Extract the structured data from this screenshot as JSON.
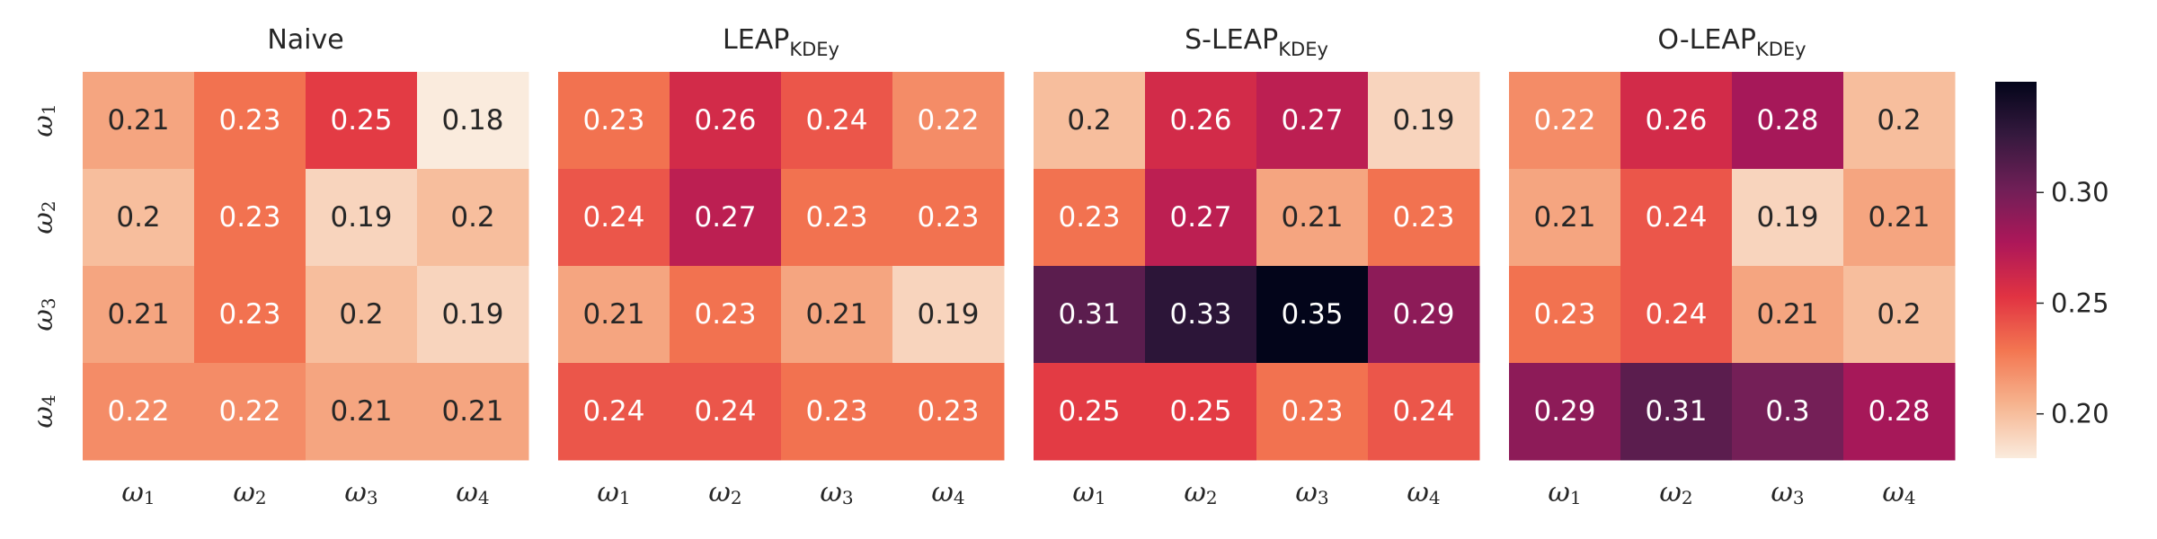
{
  "chart_data": [
    {
      "type": "heatmap",
      "title": "Naive",
      "title_sub": "",
      "x_labels": [
        "ω1",
        "ω2",
        "ω3",
        "ω4"
      ],
      "y_labels": [
        "ω1",
        "ω2",
        "ω3",
        "ω4"
      ],
      "values": [
        [
          0.21,
          0.23,
          0.25,
          0.18
        ],
        [
          0.2,
          0.23,
          0.19,
          0.2
        ],
        [
          0.21,
          0.23,
          0.2,
          0.19
        ],
        [
          0.22,
          0.22,
          0.21,
          0.21
        ]
      ]
    },
    {
      "type": "heatmap",
      "title": "LEAP",
      "title_sub": "KDEy",
      "x_labels": [
        "ω1",
        "ω2",
        "ω3",
        "ω4"
      ],
      "y_labels": [
        "ω1",
        "ω2",
        "ω3",
        "ω4"
      ],
      "values": [
        [
          0.23,
          0.26,
          0.24,
          0.22
        ],
        [
          0.24,
          0.27,
          0.23,
          0.23
        ],
        [
          0.21,
          0.23,
          0.21,
          0.19
        ],
        [
          0.24,
          0.24,
          0.23,
          0.23
        ]
      ]
    },
    {
      "type": "heatmap",
      "title": "S-LEAP",
      "title_sub": "KDEy",
      "x_labels": [
        "ω1",
        "ω2",
        "ω3",
        "ω4"
      ],
      "y_labels": [
        "ω1",
        "ω2",
        "ω3",
        "ω4"
      ],
      "values": [
        [
          0.2,
          0.26,
          0.27,
          0.19
        ],
        [
          0.23,
          0.27,
          0.21,
          0.23
        ],
        [
          0.31,
          0.33,
          0.35,
          0.29
        ],
        [
          0.25,
          0.25,
          0.23,
          0.24
        ]
      ]
    },
    {
      "type": "heatmap",
      "title": "O-LEAP",
      "title_sub": "KDEy",
      "x_labels": [
        "ω1",
        "ω2",
        "ω3",
        "ω4"
      ],
      "y_labels": [
        "ω1",
        "ω2",
        "ω3",
        "ω4"
      ],
      "values": [
        [
          0.22,
          0.26,
          0.28,
          0.2
        ],
        [
          0.21,
          0.24,
          0.19,
          0.21
        ],
        [
          0.23,
          0.24,
          0.21,
          0.2
        ],
        [
          0.29,
          0.31,
          0.3,
          0.28
        ]
      ]
    }
  ],
  "colorbar": {
    "ticks": [
      "0.20",
      "0.25",
      "0.30"
    ],
    "vmin": 0.18,
    "vmax": 0.35,
    "colormap": "rocket_r",
    "stops": [
      "#faebdd",
      "#f6b48f",
      "#f37651",
      "#e13342",
      "#ad1759",
      "#701f57",
      "#35193e",
      "#03051a"
    ]
  }
}
